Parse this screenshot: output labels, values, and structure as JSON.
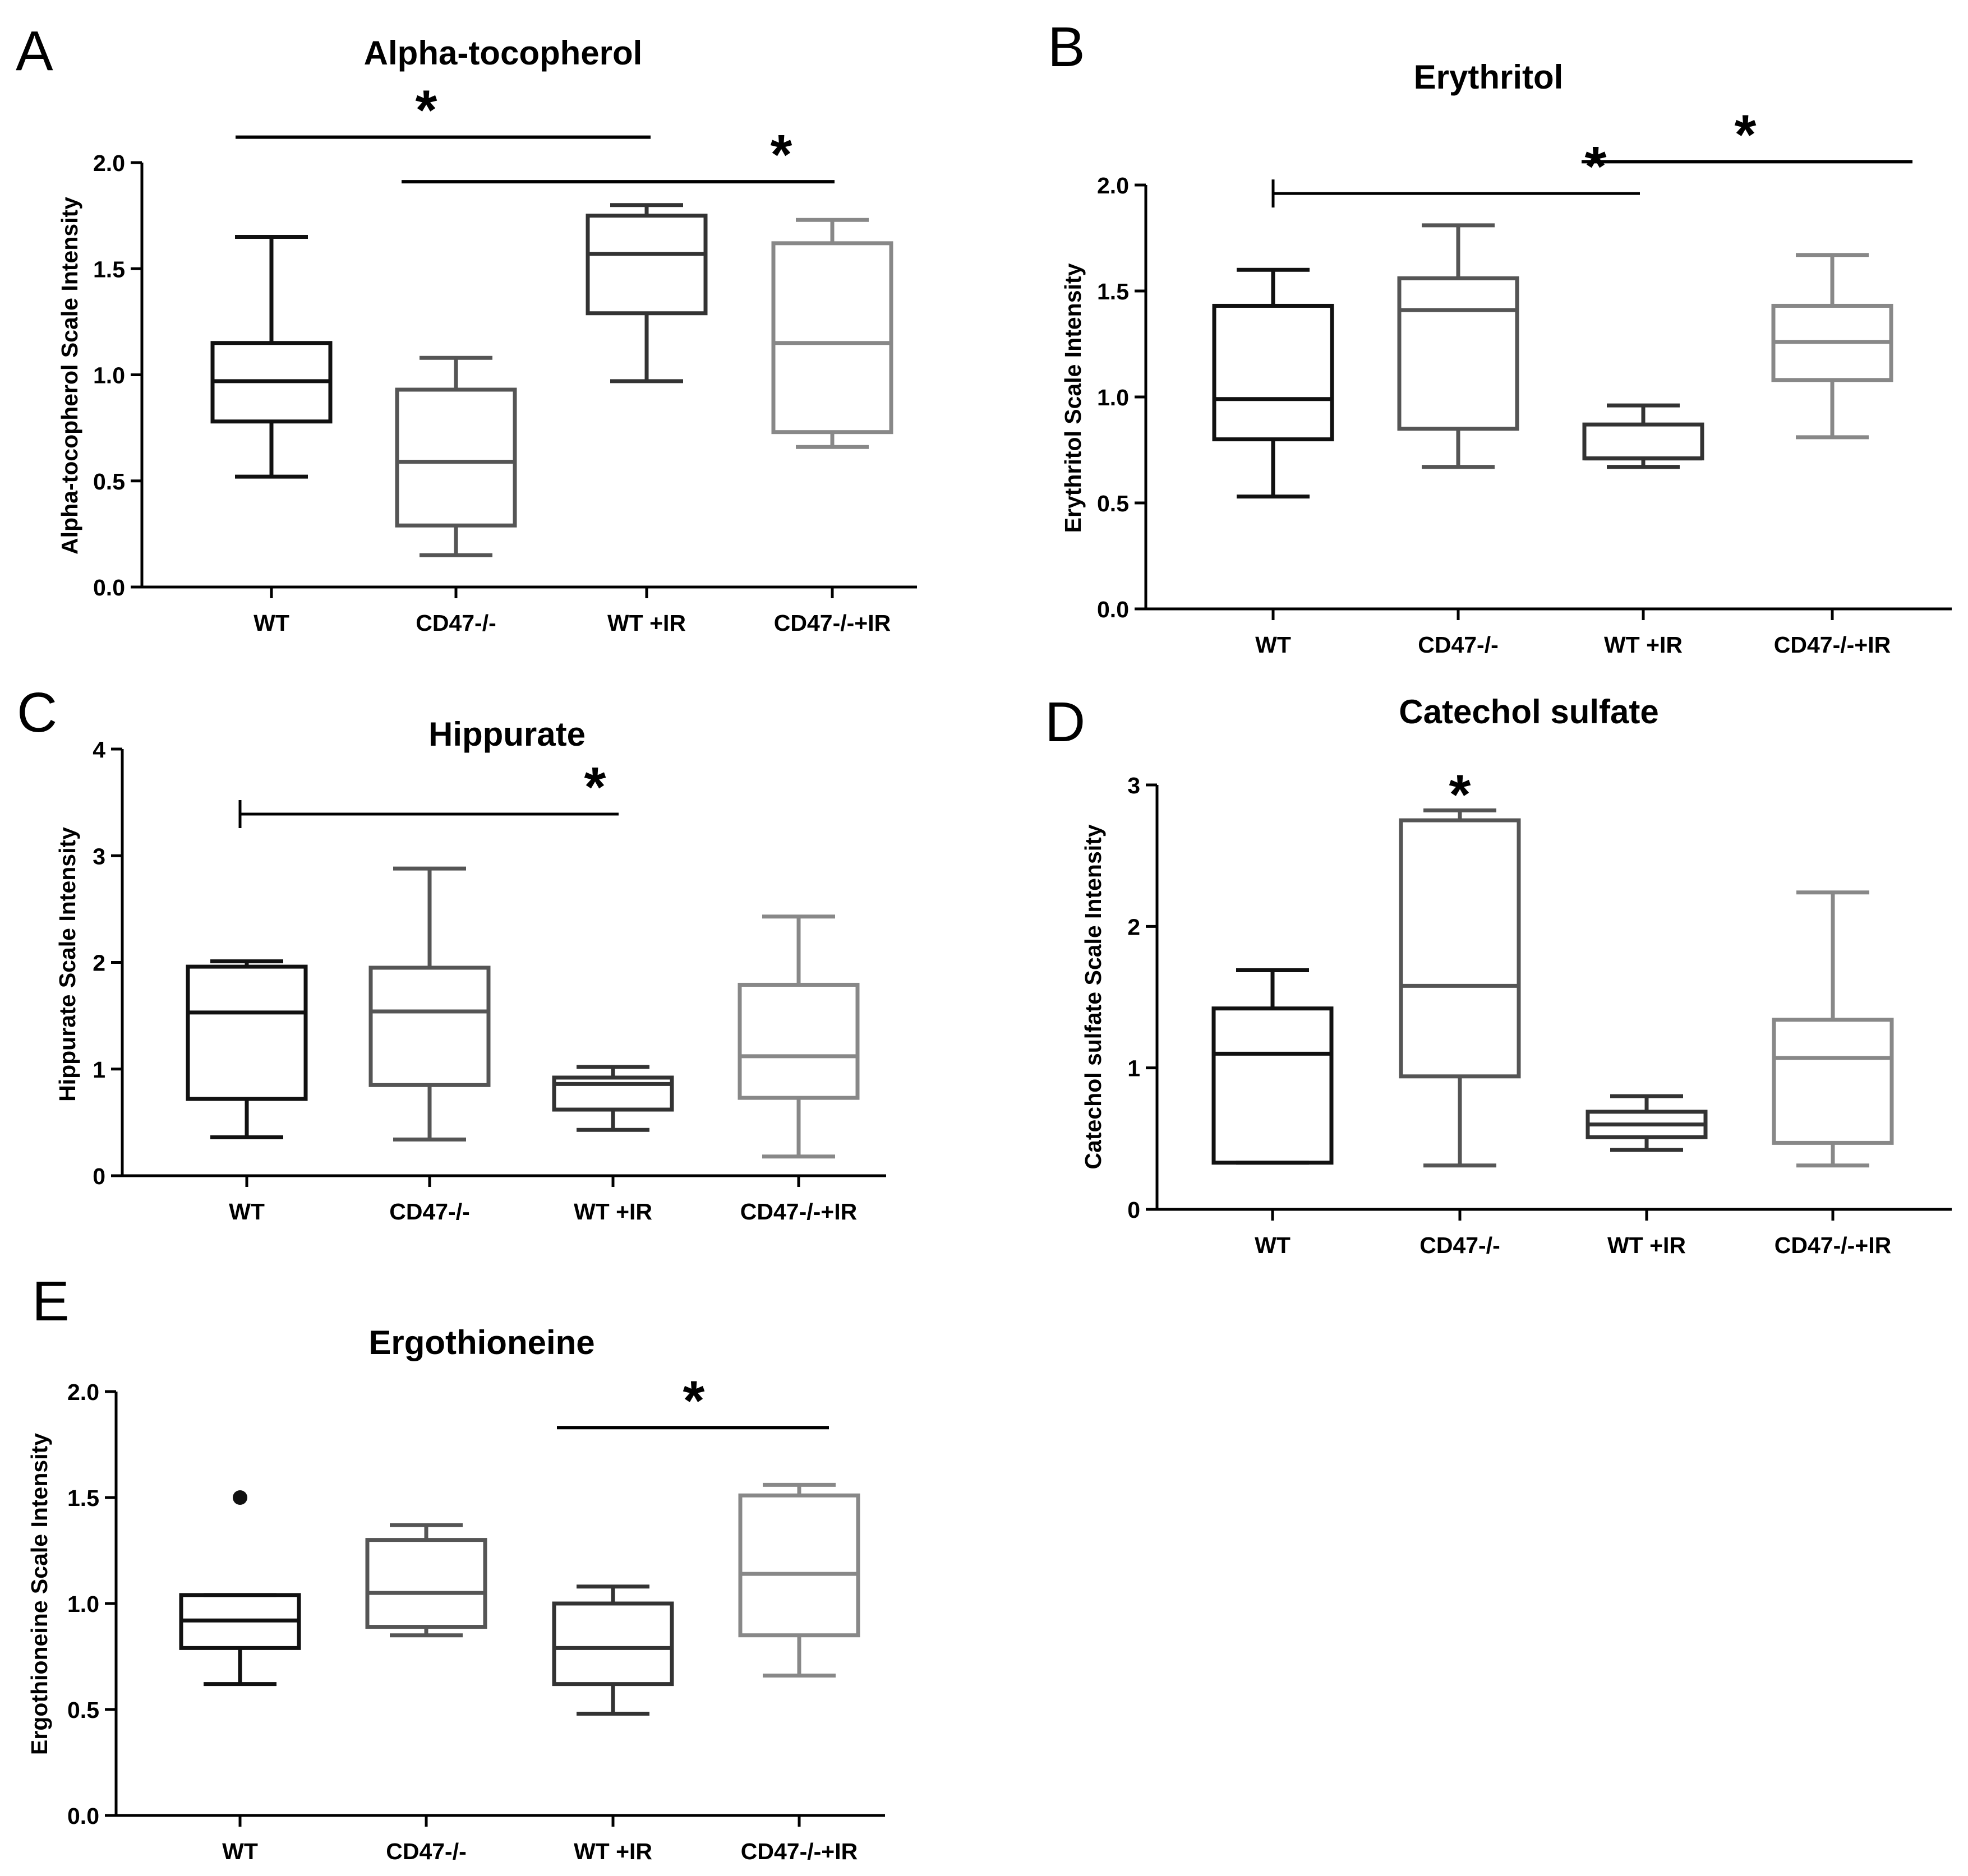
{
  "figure": {
    "panels": [
      "A",
      "B",
      "C",
      "D",
      "E"
    ]
  },
  "colors": {
    "WT": "#111111",
    "CD47-/-": "#555555",
    "WT +IR": "#333333",
    "CD47-/-+IR": "#888888",
    "axis": "#000000"
  },
  "chart_data": [
    {
      "panel": "A",
      "type": "box",
      "title": "Alpha-tocopherol",
      "ylabel": "Alpha-tocopherol Scale Intensity",
      "ylim": [
        0,
        2.0
      ],
      "yticks": [
        0,
        0.5,
        1.0,
        1.5,
        2.0
      ],
      "ytick_labels": [
        "0.0",
        "0.5",
        "1.0",
        "1.5",
        "2.0"
      ],
      "categories": [
        "WT",
        "CD47-/-",
        "WT +IR",
        "CD47-/-+IR"
      ],
      "boxes": [
        {
          "min": 0.52,
          "q1": 0.78,
          "median": 0.97,
          "q3": 1.15,
          "max": 1.65
        },
        {
          "min": 0.15,
          "q1": 0.29,
          "median": 0.59,
          "q3": 0.93,
          "max": 1.08
        },
        {
          "min": 0.97,
          "q1": 1.29,
          "median": 1.57,
          "q3": 1.75,
          "max": 1.8
        },
        {
          "min": 0.66,
          "q1": 0.73,
          "median": 1.15,
          "q3": 1.62,
          "max": 1.73
        }
      ],
      "significance": [
        {
          "from": 0,
          "to": 2,
          "y": 2.12,
          "label": "*",
          "tick": false
        },
        {
          "from": 1,
          "to": 3,
          "y": 1.91,
          "label": "*",
          "tick": false
        }
      ]
    },
    {
      "panel": "B",
      "type": "box",
      "title": "Erythritol",
      "ylabel": "Erythritol Scale Intensity",
      "ylim": [
        0,
        2.0
      ],
      "yticks": [
        0,
        0.5,
        1.0,
        1.5,
        2.0
      ],
      "ytick_labels": [
        "0.0",
        "0.5",
        "1.0",
        "1.5",
        "2.0"
      ],
      "categories": [
        "WT",
        "CD47-/-",
        "WT +IR",
        "CD47-/-+IR"
      ],
      "boxes": [
        {
          "min": 0.53,
          "q1": 0.8,
          "median": 0.99,
          "q3": 1.43,
          "max": 1.6
        },
        {
          "min": 0.67,
          "q1": 0.85,
          "median": 1.41,
          "q3": 1.56,
          "max": 1.81
        },
        {
          "min": 0.67,
          "q1": 0.71,
          "median": 0.71,
          "q3": 0.87,
          "max": 0.96
        },
        {
          "min": 0.81,
          "q1": 1.08,
          "median": 1.26,
          "q3": 1.43,
          "max": 1.67
        }
      ],
      "significance": [
        {
          "from": 0,
          "to": 2,
          "y": 1.96,
          "label": "*",
          "tick": true
        },
        {
          "from": 2,
          "to": 3,
          "y": 2.11,
          "label": "*",
          "tick": false
        }
      ]
    },
    {
      "panel": "C",
      "type": "box",
      "title": "Hippurate",
      "ylabel": "Hippurate Scale Intensity",
      "ylim": [
        0,
        4
      ],
      "yticks": [
        0,
        1,
        2,
        3,
        4
      ],
      "ytick_labels": [
        "0",
        "1",
        "2",
        "3",
        "4"
      ],
      "categories": [
        "WT",
        "CD47-/-",
        "WT +IR",
        "CD47-/-+IR"
      ],
      "boxes": [
        {
          "min": 0.36,
          "q1": 0.72,
          "median": 1.53,
          "q3": 1.96,
          "max": 2.01
        },
        {
          "min": 0.34,
          "q1": 0.85,
          "median": 1.54,
          "q3": 1.95,
          "max": 2.88
        },
        {
          "min": 0.43,
          "q1": 0.62,
          "median": 0.86,
          "q3": 0.92,
          "max": 1.02
        },
        {
          "min": 0.18,
          "q1": 0.73,
          "median": 1.12,
          "q3": 1.79,
          "max": 2.43
        }
      ],
      "significance": [
        {
          "from": 0,
          "to": 2,
          "y": 3.39,
          "label": "*",
          "tick": true
        }
      ]
    },
    {
      "panel": "D",
      "type": "box",
      "title": "Catechol sulfate",
      "ylabel": "Catechol sulfate Scale Intensity",
      "ylim": [
        0,
        3
      ],
      "yticks": [
        0,
        1,
        2,
        3
      ],
      "ytick_labels": [
        "0",
        "1",
        "2",
        "3"
      ],
      "categories": [
        "WT",
        "CD47-/-",
        "WT +IR",
        "CD47-/-+IR"
      ],
      "boxes": [
        {
          "min": 0.33,
          "q1": 0.33,
          "median": 1.1,
          "q3": 1.42,
          "max": 1.69
        },
        {
          "min": 0.31,
          "q1": 0.94,
          "median": 1.58,
          "q3": 2.75,
          "max": 2.82
        },
        {
          "min": 0.42,
          "q1": 0.51,
          "median": 0.6,
          "q3": 0.69,
          "max": 0.8
        },
        {
          "min": 0.31,
          "q1": 0.47,
          "median": 1.07,
          "q3": 1.34,
          "max": 2.24
        }
      ],
      "significance": [
        {
          "from": 1,
          "to": 1,
          "y": 2.93,
          "label": "*",
          "tick": false,
          "lineless": true
        }
      ]
    },
    {
      "panel": "E",
      "type": "box",
      "title": "Ergothioneine",
      "ylabel": "Ergothioneine Scale Intensity",
      "ylim": [
        0,
        2.0
      ],
      "yticks": [
        0,
        0.5,
        1.0,
        1.5,
        2.0
      ],
      "ytick_labels": [
        "0.0",
        "0.5",
        "1.0",
        "1.5",
        "2.0"
      ],
      "categories": [
        "WT",
        "CD47-/-",
        "WT +IR",
        "CD47-/-+IR"
      ],
      "boxes": [
        {
          "min": 0.62,
          "q1": 0.79,
          "median": 0.92,
          "q3": 1.04,
          "max": 1.04,
          "outliers": [
            1.5
          ]
        },
        {
          "min": 0.85,
          "q1": 0.89,
          "median": 1.05,
          "q3": 1.3,
          "max": 1.37
        },
        {
          "min": 0.48,
          "q1": 0.62,
          "median": 0.79,
          "q3": 1.0,
          "max": 1.08
        },
        {
          "min": 0.66,
          "q1": 0.85,
          "median": 1.14,
          "q3": 1.51,
          "max": 1.56
        }
      ],
      "significance": [
        {
          "from": 2,
          "to": 3,
          "y": 1.83,
          "label": "*",
          "tick": false
        }
      ]
    }
  ]
}
